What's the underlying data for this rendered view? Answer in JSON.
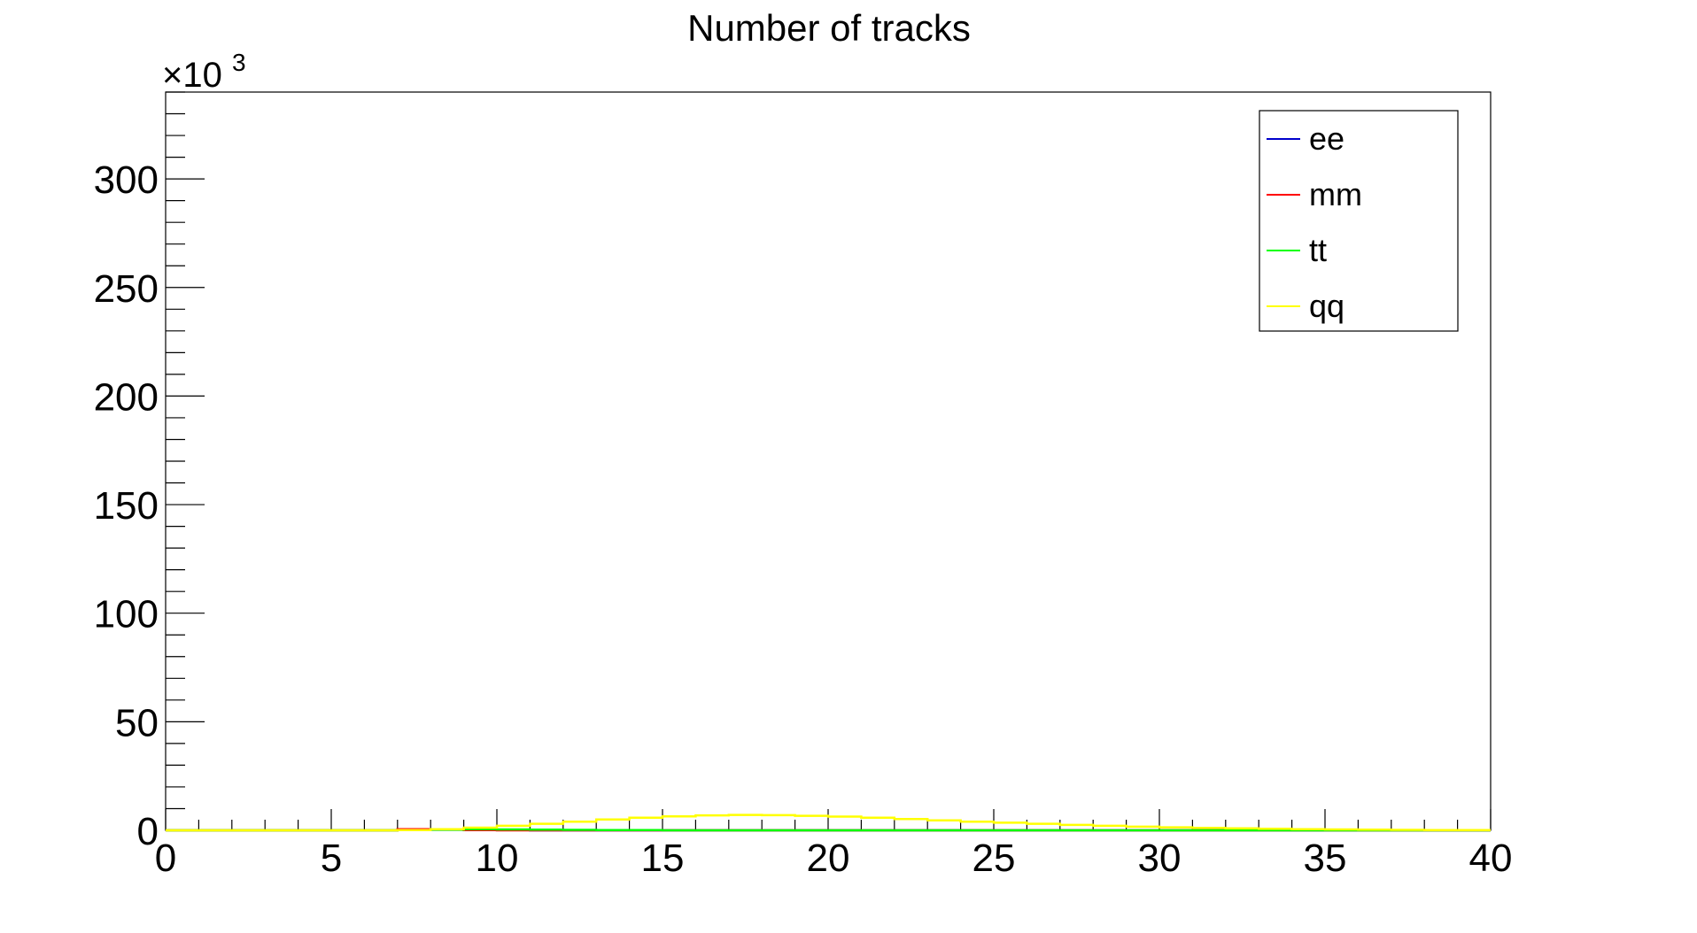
{
  "chart_data": {
    "type": "line",
    "title": "Number of tracks",
    "xlabel": "",
    "ylabel": "",
    "y_multiplier_label": "×10",
    "y_multiplier_exponent": "3",
    "xlim": [
      0,
      40
    ],
    "ylim": [
      0,
      340
    ],
    "x_ticks": [
      "0",
      "5",
      "10",
      "15",
      "20",
      "25",
      "30",
      "35",
      "40"
    ],
    "y_ticks": [
      "0",
      "50",
      "100",
      "150",
      "200",
      "250",
      "300"
    ],
    "x_tick_values": [
      0,
      5,
      10,
      15,
      20,
      25,
      30,
      35,
      40
    ],
    "y_tick_values": [
      0,
      50,
      100,
      150,
      200,
      250,
      300
    ],
    "grid": false,
    "legend_position": "top-right",
    "x": [
      0.5,
      1.5,
      2.5,
      3.5,
      4.5,
      5.5,
      6.5,
      7.5,
      8.5,
      9.5,
      10.5,
      11.5,
      12.5,
      13.5,
      14.5,
      15.5,
      16.5,
      17.5,
      18.5,
      19.5,
      20.5,
      21.5,
      22.5,
      23.5,
      24.5,
      25.5,
      26.5,
      27.5,
      28.5,
      29.5,
      30.5,
      31.5,
      32.5,
      33.5,
      34.5,
      35.5,
      36.5,
      37.5,
      38.5,
      39.5
    ],
    "series": [
      {
        "name": "ee",
        "color": "#0000cc",
        "values": [
          0,
          0,
          0,
          0,
          0,
          0,
          0,
          0.2,
          0.3,
          0.2,
          0.1,
          0,
          0,
          0,
          0,
          0,
          0,
          0,
          0,
          0,
          0,
          0,
          0,
          0,
          0,
          0,
          0,
          0,
          0,
          0,
          0,
          0,
          0,
          0,
          0,
          0,
          0,
          0,
          0,
          0
        ]
      },
      {
        "name": "mm",
        "color": "#ff0000",
        "values": [
          0,
          0,
          0,
          0,
          0,
          0,
          0,
          0.5,
          0.3,
          0.1,
          0,
          0,
          0,
          0,
          0,
          0,
          0,
          0,
          0,
          0,
          0,
          0,
          0,
          0,
          0,
          0,
          0,
          0,
          0,
          0,
          0,
          0,
          0,
          0,
          0,
          0,
          0,
          0,
          0,
          0
        ]
      },
      {
        "name": "tt",
        "color": "#00ff00",
        "values": [
          0,
          0,
          0,
          0,
          0,
          0,
          0,
          0.1,
          0.3,
          0.5,
          0.4,
          0.3,
          0.2,
          0.1,
          0.1,
          0,
          0,
          0,
          0,
          0,
          0,
          0,
          0,
          0,
          0,
          0,
          0,
          0,
          0,
          0,
          0,
          0,
          0,
          0,
          0,
          0,
          0,
          0,
          0,
          0
        ]
      },
      {
        "name": "qq",
        "color": "#ffff00",
        "values": [
          0,
          0,
          0,
          0,
          0,
          0,
          0,
          0.1,
          0.5,
          1.2,
          2.1,
          3.0,
          4.0,
          5.0,
          5.8,
          6.4,
          6.9,
          7.1,
          7.0,
          6.7,
          6.3,
          5.8,
          5.2,
          4.6,
          4.0,
          3.5,
          3.0,
          2.5,
          2.1,
          1.7,
          1.4,
          1.1,
          0.9,
          0.7,
          0.5,
          0.4,
          0.3,
          0.2,
          0.1,
          0.1
        ]
      }
    ]
  }
}
